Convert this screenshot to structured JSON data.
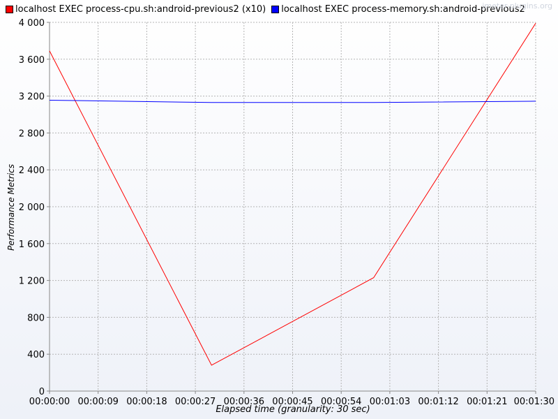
{
  "watermark": "jmeter-plugins.org",
  "chart_data": {
    "type": "line",
    "xlabel": "Elapsed time (granularity: 30 sec)",
    "ylabel": "Performance Metrics",
    "ylim": [
      0,
      4000
    ],
    "xlim": [
      "00:00:00",
      "00:01:30"
    ],
    "grid": true,
    "legend_position": "top-left",
    "y_ticks": [
      "0",
      "400",
      "800",
      "1 200",
      "1 600",
      "2 000",
      "2 400",
      "2 800",
      "3 200",
      "3 600",
      "4 000"
    ],
    "x_ticks": [
      "00:00:00",
      "00:00:09",
      "00:00:18",
      "00:00:27",
      "00:00:36",
      "00:00:45",
      "00:00:54",
      "00:01:03",
      "00:01:12",
      "00:01:21",
      "00:01:30"
    ],
    "series": [
      {
        "name": "localhost EXEC process-cpu.sh:android-previous2 (x10)",
        "color": "#ff0000",
        "x": [
          "00:00:00",
          "00:00:30",
          "00:01:00",
          "00:01:30"
        ],
        "values": [
          3690,
          280,
          1230,
          3990
        ]
      },
      {
        "name": "localhost EXEC process-memory.sh:android-previous2",
        "color": "#0000ff",
        "x": [
          "00:00:00",
          "00:00:30",
          "00:01:00",
          "00:01:30"
        ],
        "values": [
          3155,
          3130,
          3130,
          3145
        ]
      }
    ]
  }
}
